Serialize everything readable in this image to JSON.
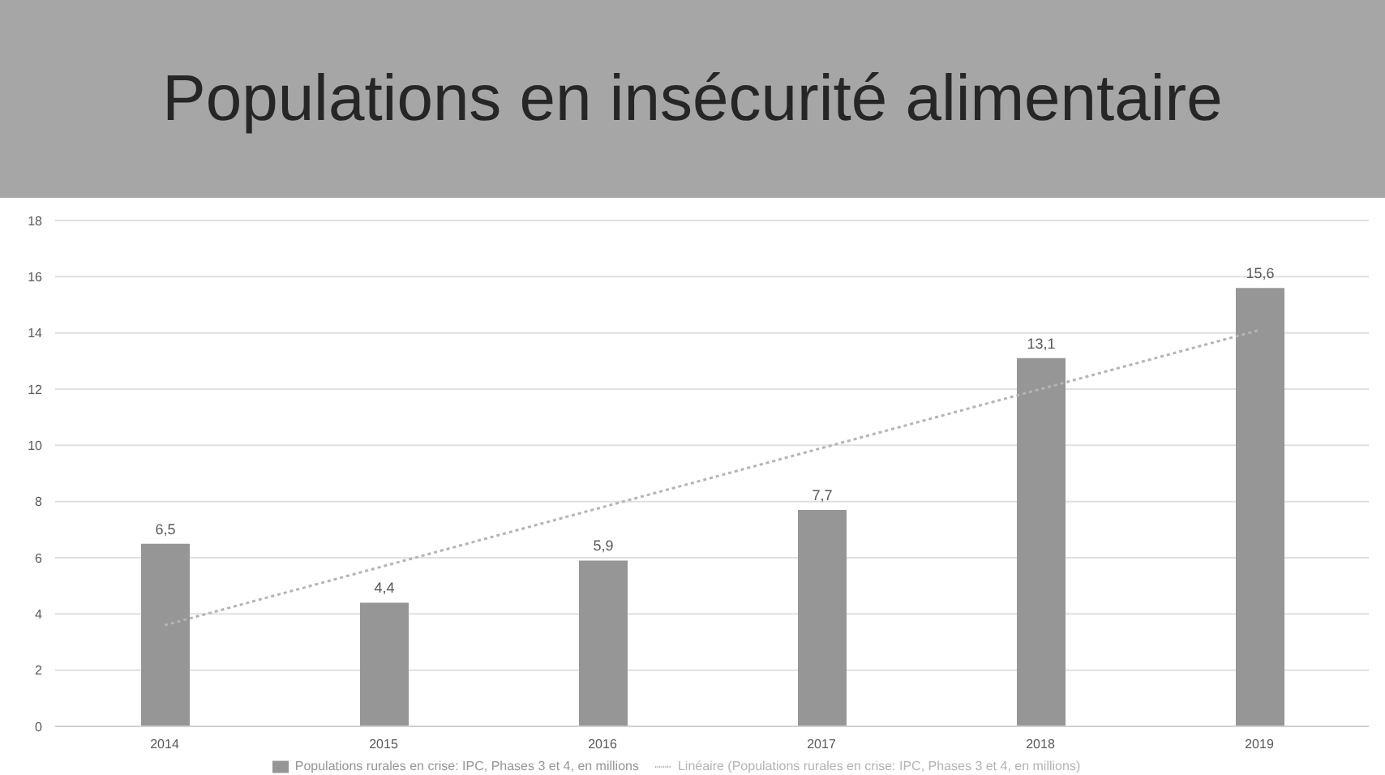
{
  "chart_data": {
    "type": "bar",
    "title": "Populations en insécurité alimentaire",
    "categories": [
      "2014",
      "2015",
      "2016",
      "2017",
      "2018",
      "2019"
    ],
    "series": [
      {
        "name": "Populations rurales en crise: IPC, Phases 3 et 4, en millions",
        "color": "#969696",
        "values": [
          6.5,
          4.4,
          5.9,
          7.7,
          13.1,
          15.6
        ],
        "value_labels": [
          "6,5",
          "4,4",
          "5,9",
          "7,7",
          "13,1",
          "15,6"
        ]
      },
      {
        "type": "line",
        "name": "Linéaire (Populations rurales en crise: IPC, Phases 3 et 4, en millions)",
        "color": "#b4b4b4",
        "values": [
          3.6,
          5.7,
          7.8,
          9.9,
          12.0,
          14.1
        ],
        "line_style": "dotted",
        "marker": "none"
      }
    ],
    "ylim": [
      0,
      18
    ],
    "yticks": [
      0,
      2,
      4,
      6,
      8,
      10,
      12,
      14,
      16,
      18
    ],
    "grid": "y",
    "legend": "bottom"
  }
}
